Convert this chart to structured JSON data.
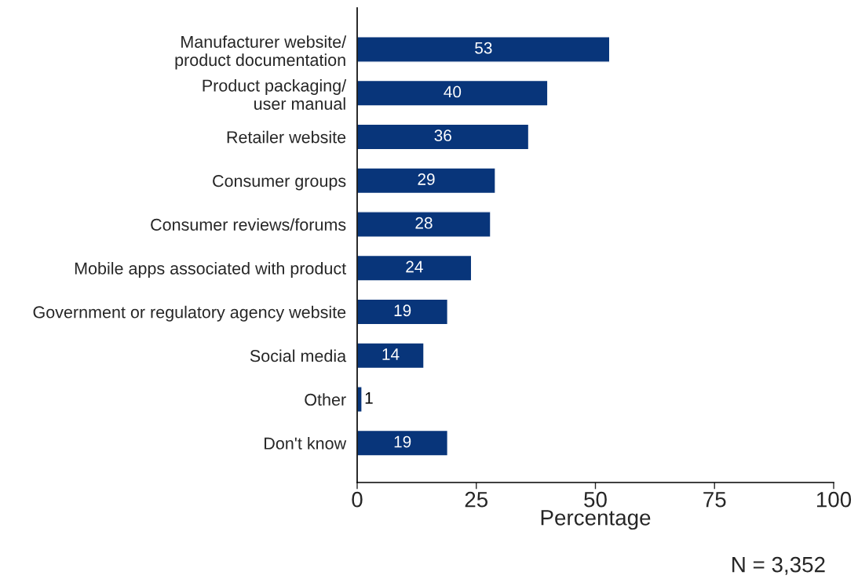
{
  "chart_data": {
    "type": "bar",
    "orientation": "horizontal",
    "xlabel": "Percentage",
    "categories": [
      "Manufacturer website/\nproduct documentation",
      "Product packaging/\nuser manual",
      "Retailer website",
      "Consumer groups",
      "Consumer reviews/forums",
      "Mobile apps associated with product",
      "Government or regulatory agency website",
      "Social media",
      "Other",
      "Don't know"
    ],
    "values": [
      53,
      40,
      36,
      29,
      28,
      24,
      19,
      14,
      1,
      19
    ],
    "color": "#08357a",
    "xlim": [
      0,
      100
    ],
    "xticks": [
      0,
      25,
      50,
      75,
      100
    ],
    "data_labels": true,
    "grid": false,
    "annotations": [
      "N = 3,352"
    ]
  }
}
